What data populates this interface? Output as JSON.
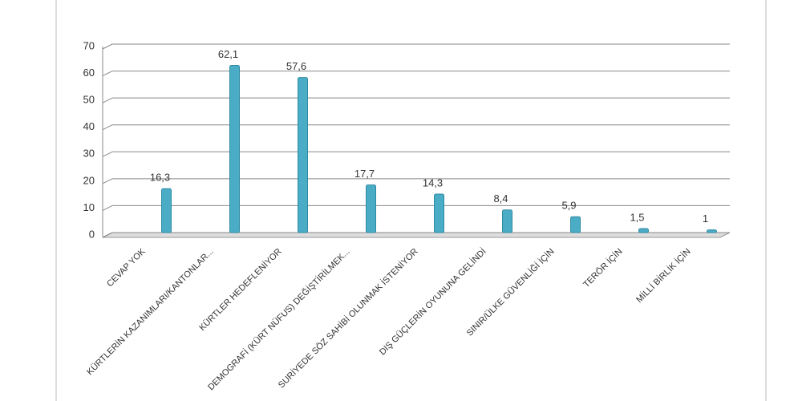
{
  "chart_data": {
    "type": "bar",
    "categories": [
      "CEVAP YOK",
      "KÜRTLERİN KAZANIMLARI/KANTONLAR...",
      "KÜRTLER HEDEFLENİYOR",
      "DEMOGRAFİ (KÜRT NÜFUS) DEĞİŞTİRİLMEK...",
      "SURİYEDE SÖZ SAHİBİ OLUNMAK İSTENİYOR",
      "DIŞ GÜÇLERİN OYUNUNA GELİNDİ",
      "SINIR/ÜLKE GÜVENLİĞİ İÇİN",
      "TERÖR İÇİN",
      "MİLLİ BİRLİK İÇİN"
    ],
    "values": [
      16.3,
      62.1,
      57.6,
      17.7,
      14.3,
      8.4,
      5.9,
      1.5,
      1
    ],
    "value_labels": [
      "16,3",
      "62,1",
      "57,6",
      "17,7",
      "14,3",
      "8,4",
      "5,9",
      "1,5",
      "1"
    ],
    "color": "#4bacc6",
    "ylim": [
      0,
      70
    ],
    "yticks": [
      0,
      10,
      20,
      30,
      40,
      50,
      60,
      70
    ],
    "grid": true
  }
}
